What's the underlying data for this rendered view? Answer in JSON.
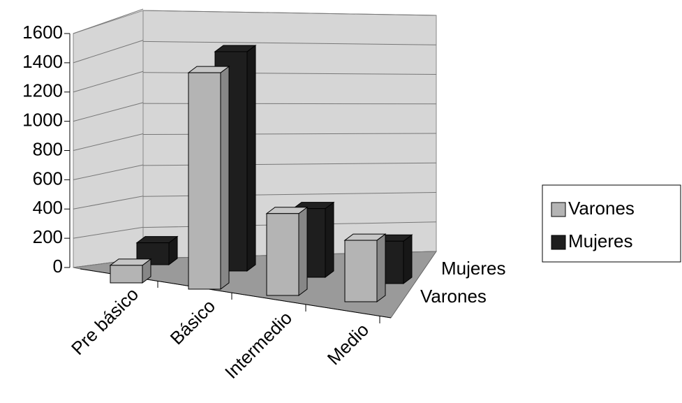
{
  "chart_data": {
    "type": "bar3d",
    "categories": [
      "Pre básico",
      "Básico",
      "Intermedio",
      "Medio"
    ],
    "series": [
      {
        "name": "Varones",
        "color": "#b4b4b4",
        "values": [
          120,
          1480,
          560,
          420
        ]
      },
      {
        "name": "Mujeres",
        "color": "#1e1e1e",
        "values": [
          150,
          1500,
          470,
          290
        ]
      }
    ],
    "ylim": [
      0,
      1600
    ],
    "yticks": [
      0,
      200,
      400,
      600,
      800,
      1000,
      1200,
      1400,
      1600
    ],
    "grid": true,
    "legend": "right"
  }
}
